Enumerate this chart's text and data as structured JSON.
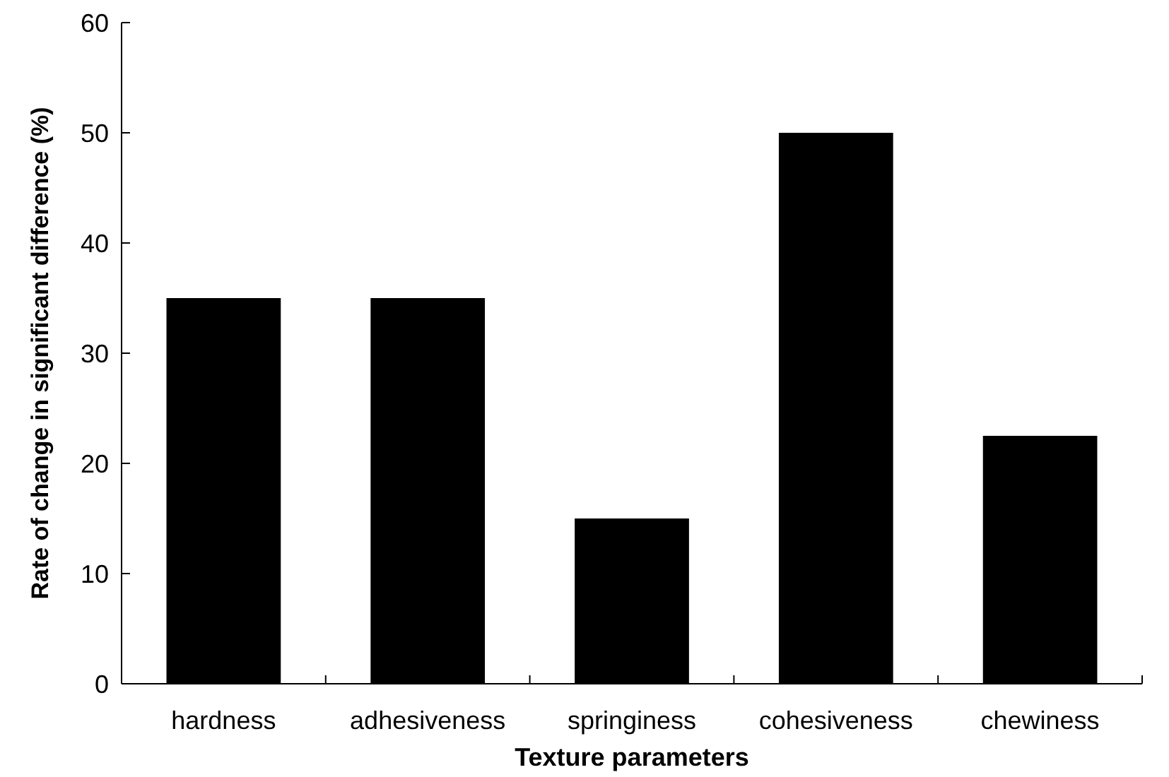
{
  "chart_data": {
    "type": "bar",
    "xlabel": "Texture parameters",
    "ylabel": "Rate of change in significant difference (%)",
    "categories": [
      "hardness",
      "adhesiveness",
      "springiness",
      "cohesiveness",
      "chewiness"
    ],
    "values": [
      35,
      35,
      15,
      50,
      22.5
    ],
    "color": "#000000",
    "ylim": [
      0,
      60
    ],
    "yticks": [
      0,
      10,
      20,
      30,
      40,
      50,
      60
    ],
    "grid": false
  }
}
